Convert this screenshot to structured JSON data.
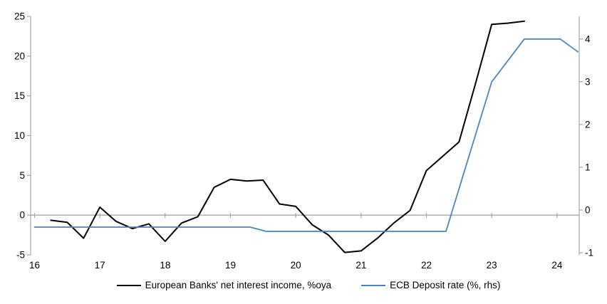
{
  "chart_data": {
    "type": "line",
    "title": "",
    "xlabel": "",
    "ylabel_left": "",
    "ylabel_right": "",
    "grid": false,
    "legend_position": "bottom",
    "axis_color": "#a6a6a6",
    "zero_line_color": "#a6a6a6",
    "x_axis": {
      "min": 15.94,
      "max": 24.34,
      "ticks": [
        16,
        17,
        18,
        19,
        20,
        21,
        22,
        23,
        24
      ],
      "tick_labels": [
        "16",
        "17",
        "18",
        "19",
        "20",
        "21",
        "22",
        "23",
        "24"
      ]
    },
    "y_left": {
      "min": -5,
      "max": 25,
      "ticks": [
        25,
        20,
        15,
        10,
        5,
        0,
        -5
      ],
      "tick_labels": [
        "25",
        "20",
        "15",
        "10",
        "5",
        "0",
        "-5"
      ]
    },
    "y_right": {
      "min": -1.05,
      "max": 4.53,
      "ticks": [
        4,
        3,
        2,
        1,
        0,
        -1
      ],
      "tick_labels": [
        "4",
        "3",
        "2",
        "1",
        "0",
        "-1"
      ]
    },
    "series": [
      {
        "name": "European Banks' net interest income, %oya",
        "axis": "left",
        "color": "#000000",
        "width": 2,
        "points": [
          [
            16.25,
            -0.65
          ],
          [
            16.5,
            -0.9
          ],
          [
            16.75,
            -2.9
          ],
          [
            17.0,
            1.0
          ],
          [
            17.25,
            -0.8
          ],
          [
            17.5,
            -1.7
          ],
          [
            17.75,
            -1.1
          ],
          [
            18.0,
            -3.3
          ],
          [
            18.25,
            -1.0
          ],
          [
            18.5,
            -0.2
          ],
          [
            18.75,
            3.5
          ],
          [
            19.0,
            4.5
          ],
          [
            19.25,
            4.3
          ],
          [
            19.5,
            4.4
          ],
          [
            19.75,
            1.4
          ],
          [
            20.0,
            1.1
          ],
          [
            20.25,
            -1.2
          ],
          [
            20.5,
            -2.5
          ],
          [
            20.75,
            -4.7
          ],
          [
            21.0,
            -4.5
          ],
          [
            21.25,
            -2.9
          ],
          [
            21.5,
            -1.0
          ],
          [
            21.75,
            0.6
          ],
          [
            22.0,
            5.6
          ],
          [
            22.25,
            7.4
          ],
          [
            22.5,
            9.2
          ],
          [
            22.75,
            16.5
          ],
          [
            23.0,
            24.0
          ],
          [
            23.25,
            24.15
          ],
          [
            23.5,
            24.4
          ]
        ]
      },
      {
        "name": "ECB Deposit rate (%, rhs)",
        "axis": "right",
        "color": "#4a84c4",
        "width": 1.8,
        "points": [
          [
            16.0,
            -0.4
          ],
          [
            19.3,
            -0.4
          ],
          [
            19.55,
            -0.5
          ],
          [
            22.3,
            -0.5
          ],
          [
            23.0,
            3.0
          ],
          [
            23.5,
            4.0
          ],
          [
            24.05,
            4.0
          ],
          [
            24.32,
            3.7
          ]
        ]
      }
    ]
  }
}
